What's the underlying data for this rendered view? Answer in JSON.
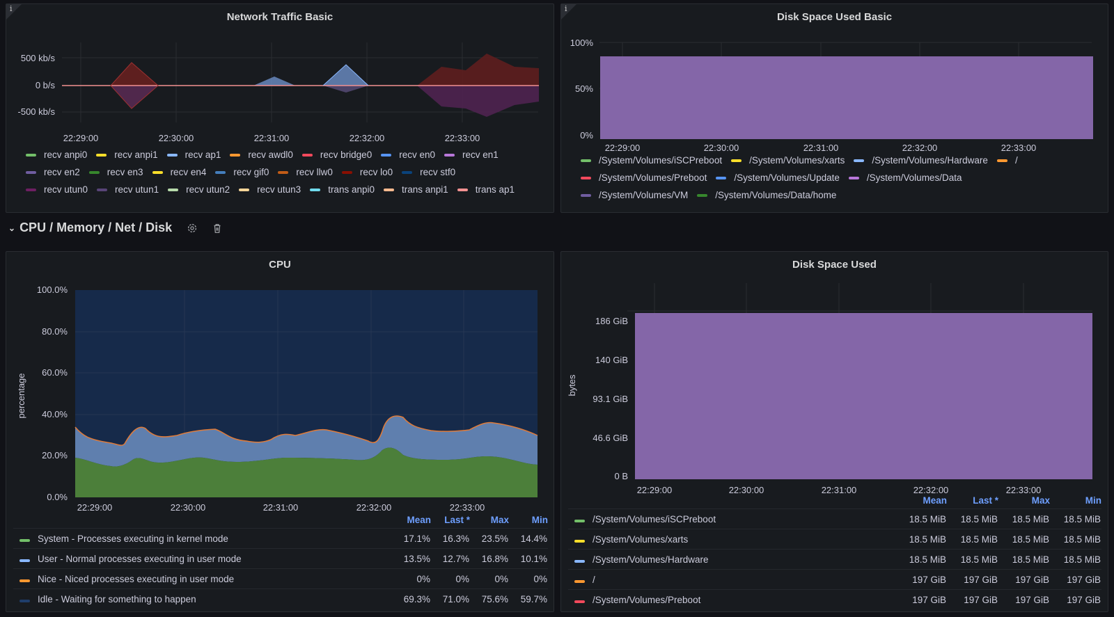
{
  "row_title": "CPU / Memory / Net / Disk",
  "net_basic": {
    "title": "Network Traffic Basic",
    "info": "i",
    "y_ticks": [
      "500 kb/s",
      "0 b/s",
      "-500 kb/s"
    ],
    "x_ticks": [
      "22:29:00",
      "22:30:00",
      "22:31:00",
      "22:32:00",
      "22:33:00"
    ],
    "legend": [
      {
        "name": "recv anpi0",
        "color": "#73bf69"
      },
      {
        "name": "recv anpi1",
        "color": "#fade2a"
      },
      {
        "name": "recv ap1",
        "color": "#8ab8ff"
      },
      {
        "name": "recv awdl0",
        "color": "#ff9830"
      },
      {
        "name": "recv bridge0",
        "color": "#f2495c"
      },
      {
        "name": "recv en0",
        "color": "#5794f2"
      },
      {
        "name": "recv en1",
        "color": "#b877d9"
      },
      {
        "name": "recv en2",
        "color": "#705da0"
      },
      {
        "name": "recv en3",
        "color": "#37872d"
      },
      {
        "name": "recv en4",
        "color": "#fade2a"
      },
      {
        "name": "recv gif0",
        "color": "#447ebc"
      },
      {
        "name": "recv llw0",
        "color": "#c15c17"
      },
      {
        "name": "recv lo0",
        "color": "#890f02"
      },
      {
        "name": "recv stf0",
        "color": "#0a437c"
      },
      {
        "name": "recv utun0",
        "color": "#6d1f62"
      },
      {
        "name": "recv utun1",
        "color": "#584477"
      },
      {
        "name": "recv utun2",
        "color": "#b7dbab"
      },
      {
        "name": "recv utun3",
        "color": "#f4d598"
      },
      {
        "name": "trans anpi0",
        "color": "#70dbed"
      },
      {
        "name": "trans anpi1",
        "color": "#f9ba8f"
      },
      {
        "name": "trans ap1",
        "color": "#f29191"
      }
    ]
  },
  "disk_basic": {
    "title": "Disk Space Used Basic",
    "info": "i",
    "y_ticks": [
      "100%",
      "50%",
      "0%"
    ],
    "x_ticks": [
      "22:29:00",
      "22:30:00",
      "22:31:00",
      "22:32:00",
      "22:33:00"
    ],
    "legend": [
      {
        "name": "/System/Volumes/iSCPreboot",
        "color": "#73bf69"
      },
      {
        "name": "/System/Volumes/xarts",
        "color": "#fade2a"
      },
      {
        "name": "/System/Volumes/Hardware",
        "color": "#8ab8ff"
      },
      {
        "name": "/",
        "color": "#ff9830"
      },
      {
        "name": "/System/Volumes/Preboot",
        "color": "#f2495c"
      },
      {
        "name": "/System/Volumes/Update",
        "color": "#5794f2"
      },
      {
        "name": "/System/Volumes/Data",
        "color": "#b877d9"
      },
      {
        "name": "/System/Volumes/VM",
        "color": "#705da0"
      },
      {
        "name": "/System/Volumes/Data/home",
        "color": "#37872d"
      }
    ]
  },
  "cpu": {
    "title": "CPU",
    "y_axis_label": "percentage",
    "y_ticks": [
      "100.0%",
      "80.0%",
      "60.0%",
      "40.0%",
      "20.0%",
      "0.0%"
    ],
    "x_ticks": [
      "22:29:00",
      "22:30:00",
      "22:31:00",
      "22:32:00",
      "22:33:00"
    ],
    "headers": [
      "Mean",
      "Last *",
      "Max",
      "Min"
    ],
    "rows": [
      {
        "name": "System - Processes executing in kernel mode",
        "color": "#73bf69",
        "mean": "17.1%",
        "last": "16.3%",
        "max": "23.5%",
        "min": "14.4%"
      },
      {
        "name": "User - Normal processes executing in user mode",
        "color": "#8ab8ff",
        "mean": "13.5%",
        "last": "12.7%",
        "max": "16.8%",
        "min": "10.1%"
      },
      {
        "name": "Nice - Niced processes executing in user mode",
        "color": "#ff9830",
        "mean": "0%",
        "last": "0%",
        "max": "0%",
        "min": "0%"
      },
      {
        "name": "Idle - Waiting for something to happen",
        "color": "#1f3d6a",
        "mean": "69.3%",
        "last": "71.0%",
        "max": "75.6%",
        "min": "59.7%"
      }
    ]
  },
  "disk_used": {
    "title": "Disk Space Used",
    "y_axis_label": "bytes",
    "y_ticks": [
      "186 GiB",
      "140 GiB",
      "93.1 GiB",
      "46.6 GiB",
      "0 B"
    ],
    "x_ticks": [
      "22:29:00",
      "22:30:00",
      "22:31:00",
      "22:32:00",
      "22:33:00"
    ],
    "headers": [
      "Mean",
      "Last *",
      "Max",
      "Min"
    ],
    "rows": [
      {
        "name": "/System/Volumes/iSCPreboot",
        "color": "#73bf69",
        "mean": "18.5 MiB",
        "last": "18.5 MiB",
        "max": "18.5 MiB",
        "min": "18.5 MiB"
      },
      {
        "name": "/System/Volumes/xarts",
        "color": "#fade2a",
        "mean": "18.5 MiB",
        "last": "18.5 MiB",
        "max": "18.5 MiB",
        "min": "18.5 MiB"
      },
      {
        "name": "/System/Volumes/Hardware",
        "color": "#8ab8ff",
        "mean": "18.5 MiB",
        "last": "18.5 MiB",
        "max": "18.5 MiB",
        "min": "18.5 MiB"
      },
      {
        "name": "/",
        "color": "#ff9830",
        "mean": "197 GiB",
        "last": "197 GiB",
        "max": "197 GiB",
        "min": "197 GiB"
      },
      {
        "name": "/System/Volumes/Preboot",
        "color": "#f2495c",
        "mean": "197 GiB",
        "last": "197 GiB",
        "max": "197 GiB",
        "min": "197 GiB"
      }
    ]
  }
}
